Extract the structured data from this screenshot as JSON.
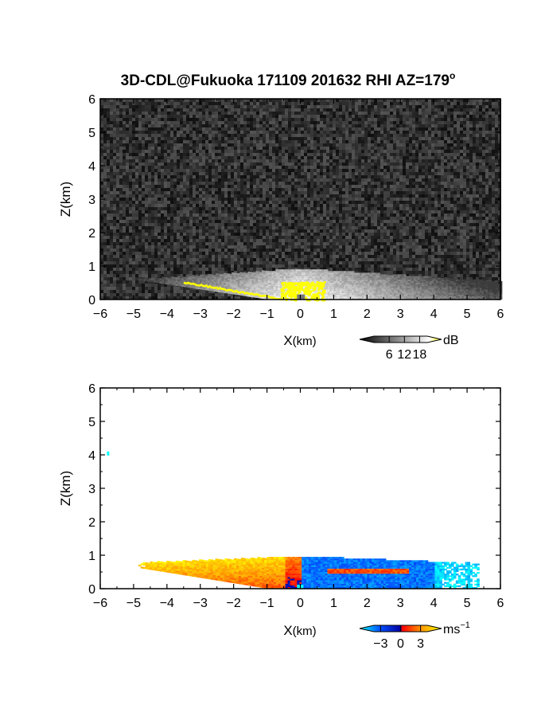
{
  "title": "3D-CDL@Fukuoka 171109 201632 RHI AZ=179",
  "title_superscript": "o",
  "chart_data": [
    {
      "type": "heatmap",
      "name": "reflectivity",
      "xlabel": "X",
      "xlabel_unit": "(km)",
      "ylabel": "Z(km)",
      "xlim": [
        -6,
        6
      ],
      "ylim": [
        0,
        6
      ],
      "xticks": [
        "−6",
        "−5",
        "−4",
        "−3",
        "−2",
        "−1",
        "0",
        "1",
        "2",
        "3",
        "4",
        "5",
        "6"
      ],
      "yticks": [
        "0",
        "1",
        "2",
        "3",
        "4",
        "5",
        "6"
      ],
      "grid": false,
      "colorbar": {
        "unit": "dB",
        "ticks": [
          "6",
          "12",
          "18"
        ],
        "tick_values": [
          6,
          12,
          18
        ],
        "range": [
          0,
          21
        ],
        "colors": [
          "#000000",
          "#ffffff",
          "#ffff00"
        ]
      },
      "echo_top_km": 0.9,
      "background": "noise"
    },
    {
      "type": "heatmap",
      "name": "doppler-velocity",
      "xlabel": "X",
      "xlabel_unit": "(km)",
      "ylabel": "Z(km)",
      "xlim": [
        -6,
        6
      ],
      "ylim": [
        0,
        6
      ],
      "xticks": [
        "−6",
        "−5",
        "−4",
        "−3",
        "−2",
        "−1",
        "0",
        "1",
        "2",
        "3",
        "4",
        "5",
        "6"
      ],
      "yticks": [
        "0",
        "1",
        "2",
        "3",
        "4",
        "5",
        "6"
      ],
      "grid": false,
      "colorbar": {
        "unit": "ms",
        "unit_superscript": "−1",
        "ticks": [
          "−3",
          "0",
          "3"
        ],
        "tick_values": [
          -3,
          0,
          3
        ],
        "range": [
          -4,
          4
        ],
        "colors": [
          "#00ffff",
          "#0050ff",
          "#0000a0",
          "#ff0000",
          "#ff9600",
          "#ffff00"
        ]
      },
      "echo_extent_km": [
        -5,
        5.3
      ],
      "echo_top_km": 0.95
    }
  ]
}
